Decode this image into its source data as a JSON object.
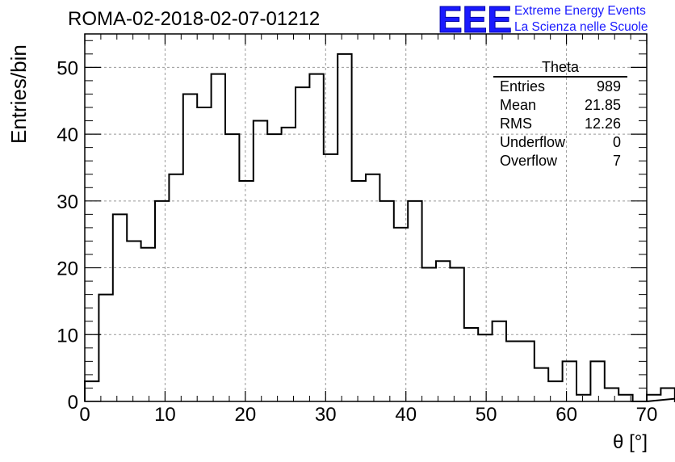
{
  "header": {
    "title": "ROMA-02-2018-02-07-01212"
  },
  "logo": {
    "mark": "EEE",
    "line1": "Extreme Energy Events",
    "line2": "La Scienza nelle Scuole",
    "color": "#1a1aff"
  },
  "stats": {
    "name": "Theta",
    "rows": [
      {
        "label": "Entries",
        "value": "989"
      },
      {
        "label": "Mean",
        "value": "21.85"
      },
      {
        "label": "RMS",
        "value": "12.26"
      },
      {
        "label": "Underflow",
        "value": "0"
      },
      {
        "label": "Overflow",
        "value": "7"
      }
    ]
  },
  "chart_data": {
    "type": "bar",
    "style": "step-histogram",
    "xlabel": "θ [°]",
    "ylabel": "Entries/bin",
    "xlim": [
      0,
      70
    ],
    "ylim": [
      0,
      55
    ],
    "grid": true,
    "bin_width": 1.75,
    "x_ticks": [
      "0",
      "10",
      "20",
      "30",
      "40",
      "50",
      "60",
      "70"
    ],
    "y_ticks": [
      "0",
      "10",
      "20",
      "30",
      "40",
      "50"
    ],
    "values": [
      3,
      16,
      28,
      24,
      23,
      30,
      34,
      46,
      44,
      49,
      40,
      33,
      42,
      40,
      41,
      47,
      49,
      37,
      52,
      33,
      34,
      30,
      26,
      30,
      20,
      21,
      20,
      11,
      10,
      12,
      9,
      9,
      5,
      3,
      6,
      1,
      6,
      2,
      1,
      0,
      1,
      2,
      0,
      0,
      0,
      1,
      4,
      4,
      1,
      2
    ]
  }
}
